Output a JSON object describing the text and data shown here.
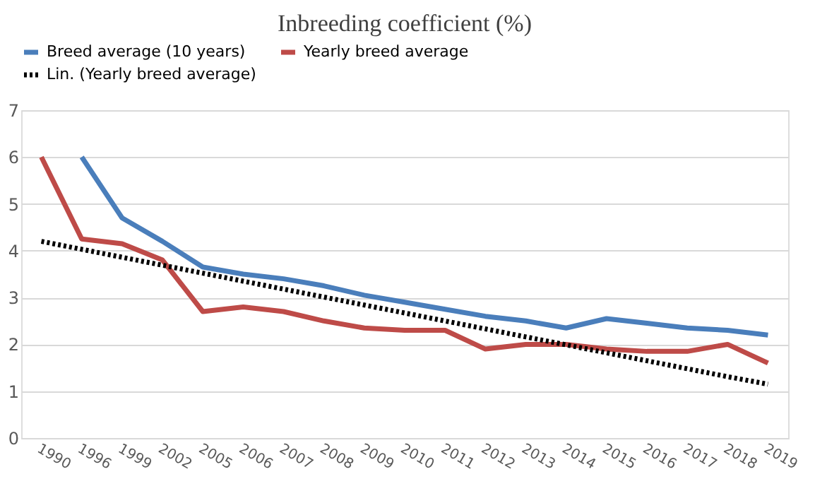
{
  "chart_data": {
    "type": "line",
    "title": "Inbreeding coefficient (%)",
    "categories": [
      "1990",
      "1996",
      "1999",
      "2002",
      "2005",
      "2006",
      "2007",
      "2008",
      "2009",
      "2010",
      "2011",
      "2012",
      "2013",
      "2014",
      "2015",
      "2016",
      "2017",
      "2018",
      "2019"
    ],
    "series": [
      {
        "name": "Breed average (10 years)",
        "color": "#4a7ebb",
        "line_style": "solid",
        "values": [
          null,
          6.0,
          4.7,
          4.2,
          3.65,
          3.5,
          3.4,
          3.25,
          3.05,
          2.9,
          2.75,
          2.6,
          2.5,
          2.35,
          2.55,
          2.45,
          2.35,
          2.3,
          2.2
        ]
      },
      {
        "name": "Yearly breed average",
        "color": "#be4b48",
        "line_style": "solid",
        "values": [
          6.0,
          4.25,
          4.15,
          3.8,
          2.7,
          2.8,
          2.7,
          2.5,
          2.35,
          2.3,
          2.3,
          1.9,
          2.0,
          2.0,
          1.9,
          1.85,
          1.85,
          2.0,
          1.6
        ]
      },
      {
        "name": "Lin. (Yearly breed average)",
        "color": "#000000",
        "line_style": "dotted",
        "values": [
          4.2,
          4.03,
          3.86,
          3.69,
          3.52,
          3.35,
          3.18,
          3.01,
          2.84,
          2.67,
          2.5,
          2.33,
          2.16,
          1.99,
          1.82,
          1.65,
          1.48,
          1.31,
          1.15
        ]
      }
    ],
    "ylim": [
      0,
      7
    ],
    "yticks": [
      0,
      1,
      2,
      3,
      4,
      5,
      6,
      7
    ],
    "grid": "y",
    "legend": "top",
    "marker": "none"
  }
}
